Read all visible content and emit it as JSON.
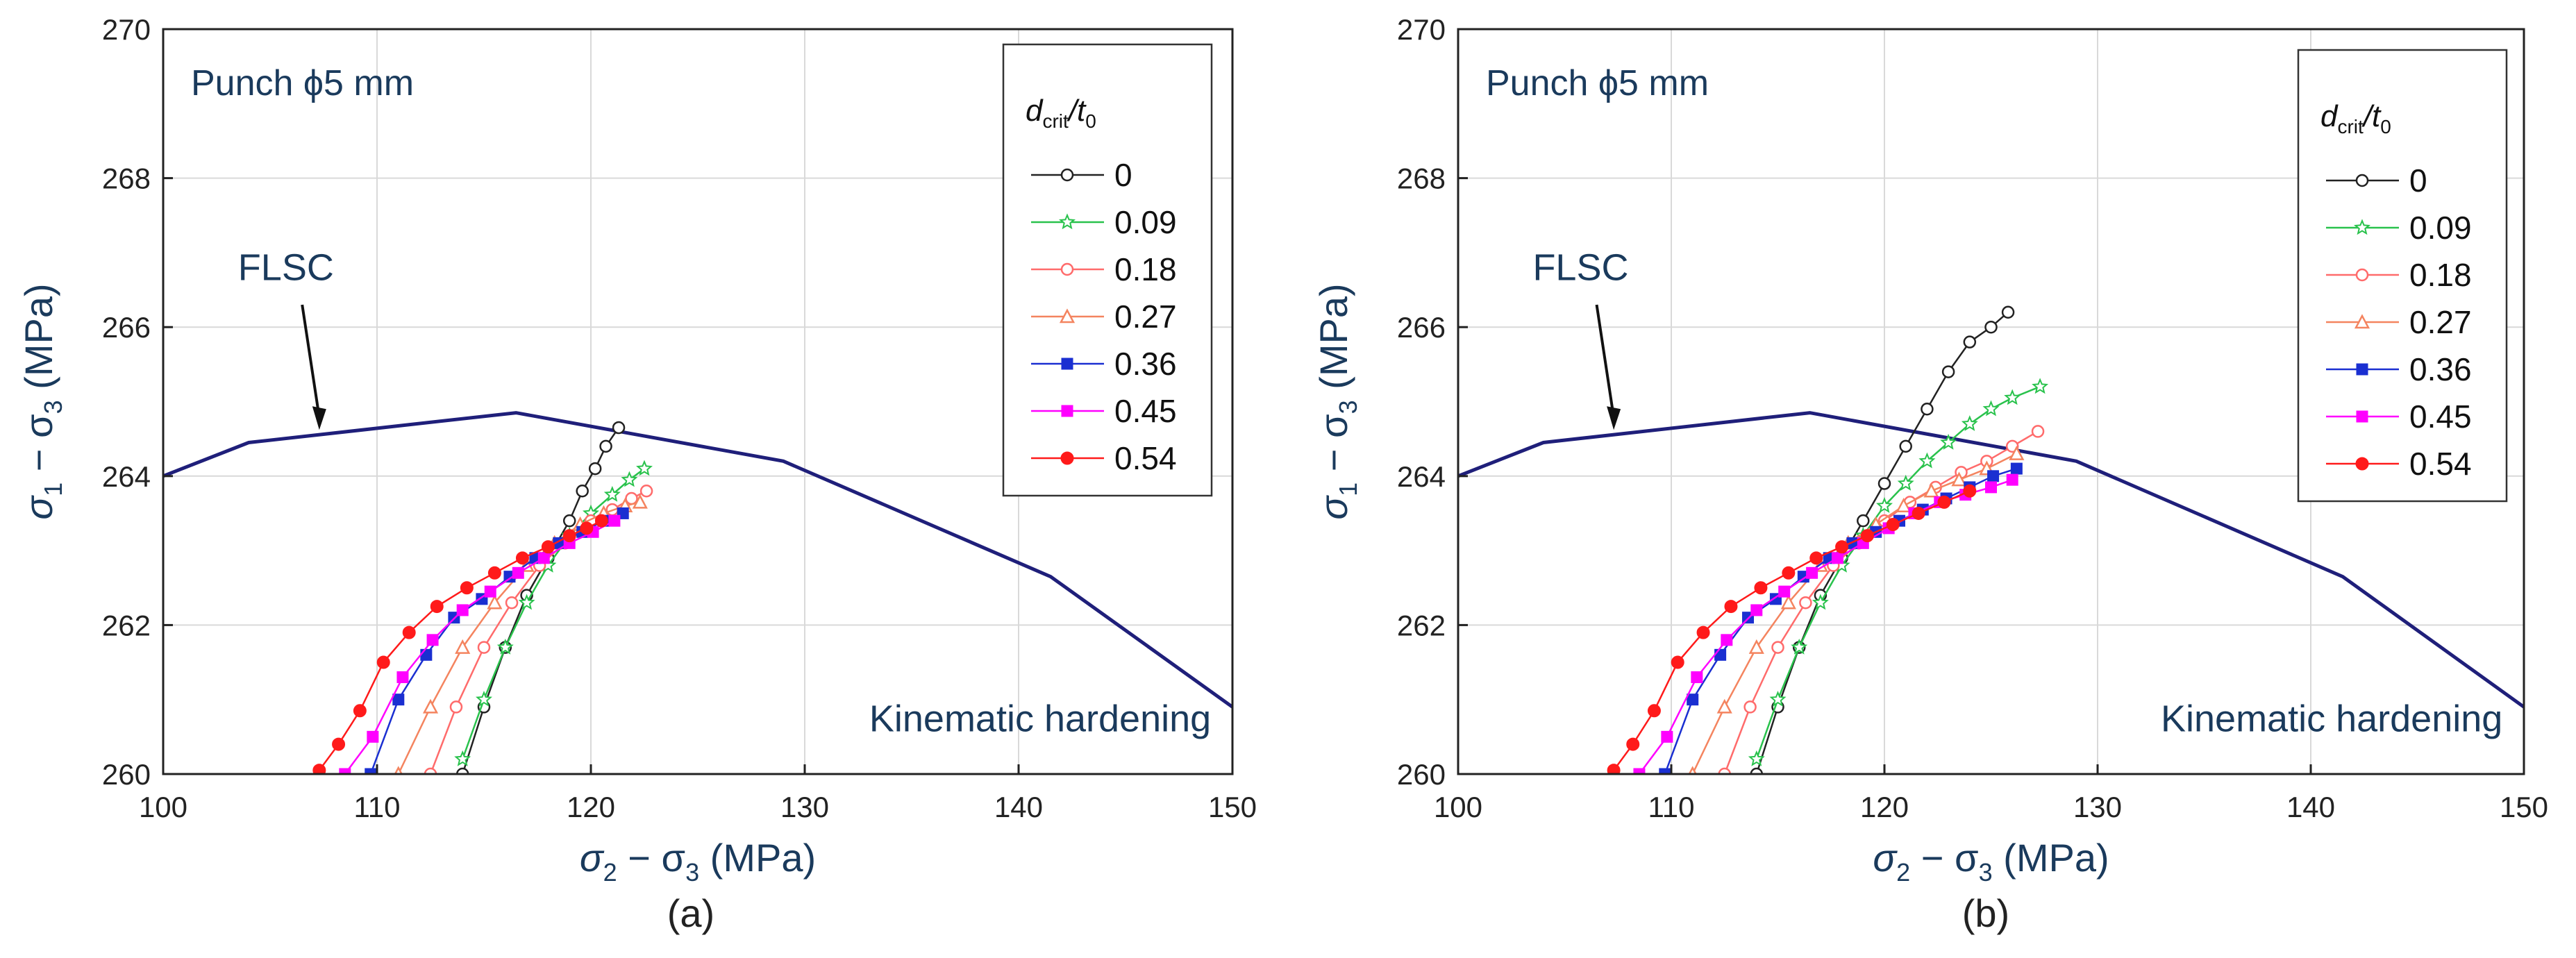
{
  "figure": {
    "caption_a": "(a)",
    "caption_b": "(b)"
  },
  "chart_data": [
    {
      "type": "line",
      "panel": "(a)",
      "xlabel": {
        "s1": "σ",
        "sub1": "2",
        "mid": " − σ",
        "sub2": "3",
        "unit": " (MPa)"
      },
      "ylabel": {
        "s1": "σ",
        "sub1": "1",
        "mid": " − σ",
        "sub2": "3",
        "unit": " (MPa)"
      },
      "xlim": [
        100,
        150
      ],
      "ylim": [
        260,
        270
      ],
      "xticks": [
        100,
        110,
        120,
        130,
        140,
        150
      ],
      "yticks": [
        260,
        262,
        264,
        266,
        268,
        270
      ],
      "grid": true,
      "annotations": {
        "punch": "Punch ϕ5 mm",
        "flsc": "FLSC",
        "hardening": "Kinematic hardening"
      },
      "legend": {
        "title_main": "d",
        "title_sub": "crit",
        "title_sep": "/t",
        "title_sub2": "0",
        "placement": "top-right"
      },
      "flsc": {
        "x": [
          100,
          104,
          116.5,
          129,
          141.5,
          150
        ],
        "y": [
          264,
          264.45,
          264.85,
          264.2,
          262.65,
          260.9
        ],
        "color": "#1f1f7a"
      },
      "series": [
        {
          "name": "0",
          "color": "#222222",
          "marker": "circle-open",
          "x": [
            114,
            115,
            116,
            117,
            118,
            119,
            119.6,
            120.2,
            120.7,
            121.3
          ],
          "y": [
            260,
            260.9,
            261.7,
            262.4,
            262.9,
            263.4,
            263.8,
            264.1,
            264.4,
            264.65
          ]
        },
        {
          "name": "0.09",
          "color": "#29c24c",
          "marker": "star-open",
          "x": [
            114,
            115,
            116,
            117,
            118,
            119,
            120,
            121,
            121.8,
            122.5
          ],
          "y": [
            260.2,
            261,
            261.7,
            262.3,
            262.8,
            263.2,
            263.5,
            263.75,
            263.95,
            264.1
          ]
        },
        {
          "name": "0.18",
          "color": "#ff6b6b",
          "marker": "circle-open",
          "x": [
            112.5,
            113.7,
            115,
            116.3,
            117.6,
            118.8,
            120,
            121,
            121.9,
            122.6
          ],
          "y": [
            260,
            260.9,
            261.7,
            262.3,
            262.8,
            263.1,
            263.4,
            263.55,
            263.7,
            263.8
          ]
        },
        {
          "name": "0.27",
          "color": "#f4845f",
          "marker": "triangle-open",
          "x": [
            111,
            112.5,
            114,
            115.5,
            117,
            118.3,
            119.5,
            120.6,
            121.6,
            122.3
          ],
          "y": [
            260,
            260.9,
            261.7,
            262.3,
            262.8,
            263.1,
            263.35,
            263.5,
            263.6,
            263.65
          ]
        },
        {
          "name": "0.36",
          "color": "#1a2fd1",
          "marker": "square-filled",
          "x": [
            109.7,
            111,
            112.3,
            113.6,
            114.9,
            116.2,
            117.4,
            118.5,
            119.6,
            120.6,
            121.5
          ],
          "y": [
            260,
            261,
            261.6,
            262.1,
            262.35,
            262.65,
            262.9,
            263.1,
            263.25,
            263.4,
            263.5
          ]
        },
        {
          "name": "0.45",
          "color": "#ff00ff",
          "marker": "square-filled",
          "x": [
            108.5,
            109.8,
            111.2,
            112.6,
            114,
            115.3,
            116.6,
            117.8,
            119,
            120.1,
            121.1
          ],
          "y": [
            260,
            260.5,
            261.3,
            261.8,
            262.2,
            262.45,
            262.7,
            262.9,
            263.1,
            263.25,
            263.4
          ]
        },
        {
          "name": "0.54",
          "color": "#ff1a1a",
          "marker": "circle-filled",
          "x": [
            107.3,
            108.2,
            109.2,
            110.3,
            111.5,
            112.8,
            114.2,
            115.5,
            116.8,
            118,
            119,
            119.8,
            120.5
          ],
          "y": [
            260.05,
            260.4,
            260.85,
            261.5,
            261.9,
            262.25,
            262.5,
            262.7,
            262.9,
            263.05,
            263.2,
            263.3,
            263.4
          ]
        }
      ]
    },
    {
      "type": "line",
      "panel": "(b)",
      "xlabel": {
        "s1": "σ",
        "sub1": "2",
        "mid": " − σ",
        "sub2": "3",
        "unit": " (MPa)"
      },
      "ylabel": {
        "s1": "σ",
        "sub1": "1",
        "mid": " − σ",
        "sub2": "3",
        "unit": " (MPa)"
      },
      "xlim": [
        100,
        150
      ],
      "ylim": [
        260,
        270
      ],
      "xticks": [
        100,
        110,
        120,
        130,
        140,
        150
      ],
      "yticks": [
        260,
        262,
        264,
        266,
        268,
        270
      ],
      "grid": true,
      "annotations": {
        "punch": "Punch ϕ5 mm",
        "flsc": "FLSC",
        "hardening": "Kinematic hardening"
      },
      "legend": {
        "title_main": "d",
        "title_sub": "crit",
        "title_sep": "/t",
        "title_sub2": "0",
        "placement": "top-right"
      },
      "flsc": {
        "x": [
          100,
          104,
          116.5,
          129,
          141.5,
          150
        ],
        "y": [
          264,
          264.45,
          264.85,
          264.2,
          262.65,
          260.9
        ],
        "color": "#1f1f7a"
      },
      "series": [
        {
          "name": "0",
          "color": "#222222",
          "marker": "circle-open",
          "x": [
            114,
            115,
            116,
            117,
            118,
            119,
            120,
            121,
            122,
            123,
            124,
            125,
            125.8
          ],
          "y": [
            260,
            260.9,
            261.7,
            262.4,
            262.9,
            263.4,
            263.9,
            264.4,
            264.9,
            265.4,
            265.8,
            266,
            266.2
          ]
        },
        {
          "name": "0.09",
          "color": "#29c24c",
          "marker": "star-open",
          "x": [
            114,
            115,
            116,
            117,
            118,
            119,
            120,
            121,
            122,
            123,
            124,
            125,
            126,
            127.3
          ],
          "y": [
            260.2,
            261,
            261.7,
            262.3,
            262.8,
            263.2,
            263.6,
            263.9,
            264.2,
            264.45,
            264.7,
            264.9,
            265.05,
            265.2
          ]
        },
        {
          "name": "0.18",
          "color": "#ff6b6b",
          "marker": "circle-open",
          "x": [
            112.5,
            113.7,
            115,
            116.3,
            117.6,
            118.8,
            120,
            121.2,
            122.4,
            123.6,
            124.8,
            126,
            127.2
          ],
          "y": [
            260,
            260.9,
            261.7,
            262.3,
            262.8,
            263.1,
            263.4,
            263.65,
            263.85,
            264.05,
            264.2,
            264.4,
            264.6
          ]
        },
        {
          "name": "0.27",
          "color": "#f4845f",
          "marker": "triangle-open",
          "x": [
            111,
            112.5,
            114,
            115.5,
            117,
            118.3,
            119.6,
            120.9,
            122.2,
            123.5,
            124.8,
            126.2
          ],
          "y": [
            260,
            260.9,
            261.7,
            262.3,
            262.8,
            263.1,
            263.35,
            263.6,
            263.8,
            263.95,
            264.1,
            264.3
          ]
        },
        {
          "name": "0.36",
          "color": "#1a2fd1",
          "marker": "square-filled",
          "x": [
            109.7,
            111,
            112.3,
            113.6,
            114.9,
            116.2,
            117.4,
            118.5,
            119.6,
            120.7,
            121.8,
            122.9,
            124,
            125.1,
            126.2
          ],
          "y": [
            260,
            261,
            261.6,
            262.1,
            262.35,
            262.65,
            262.9,
            263.1,
            263.25,
            263.4,
            263.55,
            263.7,
            263.85,
            264,
            264.1
          ]
        },
        {
          "name": "0.45",
          "color": "#ff00ff",
          "marker": "square-filled",
          "x": [
            108.5,
            109.8,
            111.2,
            112.6,
            114,
            115.3,
            116.6,
            117.8,
            119,
            120.2,
            121.4,
            122.6,
            123.8,
            125,
            126
          ],
          "y": [
            260,
            260.5,
            261.3,
            261.8,
            262.2,
            262.45,
            262.7,
            262.9,
            263.1,
            263.3,
            263.5,
            263.65,
            263.75,
            263.85,
            263.95
          ]
        },
        {
          "name": "0.54",
          "color": "#ff1a1a",
          "marker": "circle-filled",
          "x": [
            107.3,
            108.2,
            109.2,
            110.3,
            111.5,
            112.8,
            114.2,
            115.5,
            116.8,
            118,
            119.2,
            120.4,
            121.6,
            122.8,
            124
          ],
          "y": [
            260.05,
            260.4,
            260.85,
            261.5,
            261.9,
            262.25,
            262.5,
            262.7,
            262.9,
            263.05,
            263.2,
            263.35,
            263.5,
            263.65,
            263.8
          ]
        }
      ]
    }
  ]
}
